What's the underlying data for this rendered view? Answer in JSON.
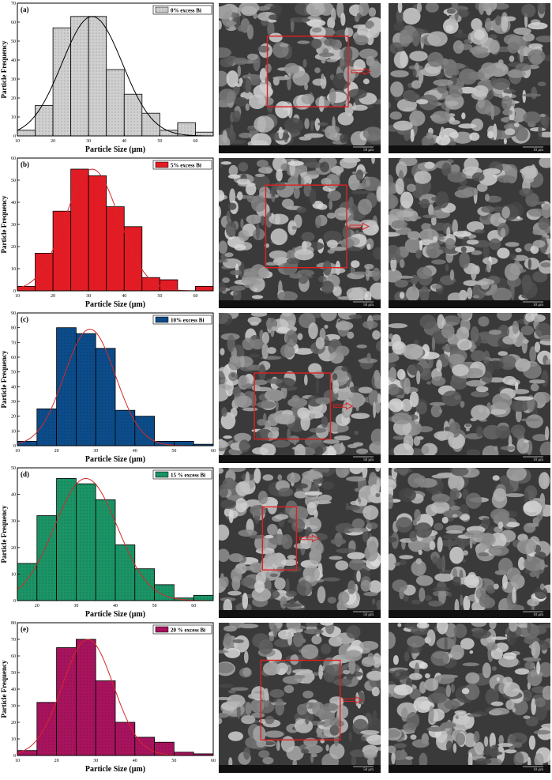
{
  "chart_data": [
    {
      "type": "bar",
      "panel_label": "(a)",
      "legend": "0% excess Bi",
      "xlabel": "Particle Size (μm)",
      "ylabel": "Particle Frequency",
      "xlim": [
        10,
        65
      ],
      "ylim": [
        0,
        70
      ],
      "xticks": [
        "10",
        "20",
        "30",
        "40",
        "50",
        "60"
      ],
      "yticks": [
        "0",
        "10",
        "20",
        "30",
        "40",
        "50",
        "60",
        "70"
      ],
      "bin_edges": [
        10,
        15,
        20,
        25,
        30,
        35,
        40,
        45,
        50,
        55,
        60,
        65
      ],
      "values": [
        3,
        16,
        57,
        63,
        63,
        35,
        22,
        12,
        3,
        7,
        2
      ],
      "fit_curve": {
        "type": "gaussian",
        "peak_x": 31,
        "peak_y": 63,
        "sigma": 8.5
      },
      "bar_color": "#cfcfcf",
      "hatch": "dots"
    },
    {
      "type": "bar",
      "panel_label": "(b)",
      "legend": "5% excess Bi",
      "xlabel": "Particle Size (μm)",
      "ylabel": "Particle Frequency",
      "xlim": [
        10,
        65
      ],
      "ylim": [
        0,
        60
      ],
      "xticks": [
        "10",
        "20",
        "30",
        "40",
        "50",
        "60"
      ],
      "yticks": [
        "0",
        "10",
        "20",
        "30",
        "40",
        "50",
        "60"
      ],
      "bin_edges": [
        10,
        15,
        20,
        25,
        30,
        35,
        40,
        45,
        50,
        55,
        60,
        65
      ],
      "values": [
        2,
        17,
        36,
        55,
        52,
        38,
        29,
        6,
        5,
        0,
        2
      ],
      "fit_curve": {
        "type": "gaussian",
        "peak_x": 31,
        "peak_y": 55,
        "sigma": 7.5
      },
      "bar_color": "#e21c24",
      "hatch": "none"
    },
    {
      "type": "bar",
      "panel_label": "(c)",
      "legend": "10% excess Bi",
      "xlabel": "Particle Size (μm)",
      "ylabel": "Particle Frequency",
      "xlim": [
        10,
        60
      ],
      "ylim": [
        0,
        90
      ],
      "xticks": [
        "10",
        "20",
        "30",
        "40",
        "50",
        "60"
      ],
      "yticks": [
        "0",
        "10",
        "20",
        "30",
        "40",
        "50",
        "60",
        "70",
        "80",
        "90"
      ],
      "bin_edges": [
        10,
        15,
        20,
        25,
        30,
        35,
        40,
        45,
        50,
        55,
        60
      ],
      "values": [
        3,
        25,
        80,
        76,
        66,
        24,
        20,
        3,
        3,
        1
      ],
      "fit_curve": {
        "type": "gaussian",
        "peak_x": 28.5,
        "peak_y": 79,
        "sigma": 6.5
      },
      "bar_color": "#0c4c8a",
      "hatch": "dots"
    },
    {
      "type": "bar",
      "panel_label": "(d)",
      "legend": "15 % excess Bi",
      "xlabel": "Particle Size (μm)",
      "ylabel": "Particle Frequency",
      "xlim": [
        15,
        65
      ],
      "ylim": [
        0,
        50
      ],
      "xticks": [
        "20",
        "30",
        "40",
        "50",
        "60"
      ],
      "yticks": [
        "0",
        "10",
        "20",
        "30",
        "40",
        "50"
      ],
      "bin_edges": [
        15,
        20,
        25,
        30,
        35,
        40,
        45,
        50,
        55,
        60,
        65
      ],
      "values": [
        14,
        32,
        46,
        44,
        38,
        21,
        12,
        6,
        1,
        2
      ],
      "fit_curve": {
        "type": "gaussian",
        "peak_x": 32.5,
        "peak_y": 46,
        "sigma": 8
      },
      "bar_color": "#1b9466",
      "hatch": "dots"
    },
    {
      "type": "bar",
      "panel_label": "(e)",
      "legend": "20 % excess Bi",
      "xlabel": "Particle Size (μm)",
      "ylabel": "Particle Frequency",
      "xlim": [
        10,
        60
      ],
      "ylim": [
        0,
        80
      ],
      "xticks": [
        "10",
        "20",
        "30",
        "40",
        "50",
        "60"
      ],
      "yticks": [
        "0",
        "10",
        "20",
        "30",
        "40",
        "50",
        "60",
        "70",
        "80"
      ],
      "bin_edges": [
        10,
        15,
        20,
        25,
        30,
        35,
        40,
        45,
        50,
        55,
        60
      ],
      "values": [
        3,
        32,
        65,
        70,
        45,
        20,
        11,
        8,
        2,
        1
      ],
      "fit_curve": {
        "type": "gaussian",
        "peak_x": 28,
        "peak_y": 70,
        "sigma": 6.5
      },
      "bar_color": "#a8135e",
      "hatch": "dots"
    }
  ],
  "micrographs": [
    {
      "row": "a",
      "low_mag_scale": "50 μm",
      "high_mag_scale": "10 μm"
    },
    {
      "row": "b",
      "low_mag_scale": "50 μm",
      "high_mag_scale": "10 μm"
    },
    {
      "row": "c",
      "low_mag_scale": "50 μm",
      "high_mag_scale": "10 μm"
    },
    {
      "row": "d",
      "low_mag_scale": "50 μm",
      "high_mag_scale": "10 μm"
    },
    {
      "row": "e",
      "low_mag_scale": "50 μm",
      "high_mag_scale": "10 μm"
    }
  ],
  "colors": {
    "fit_line_a": "#000000",
    "fit_line_other": "#d42a2a",
    "box": "#e02020",
    "sem_bg": "#3a3a3a"
  }
}
